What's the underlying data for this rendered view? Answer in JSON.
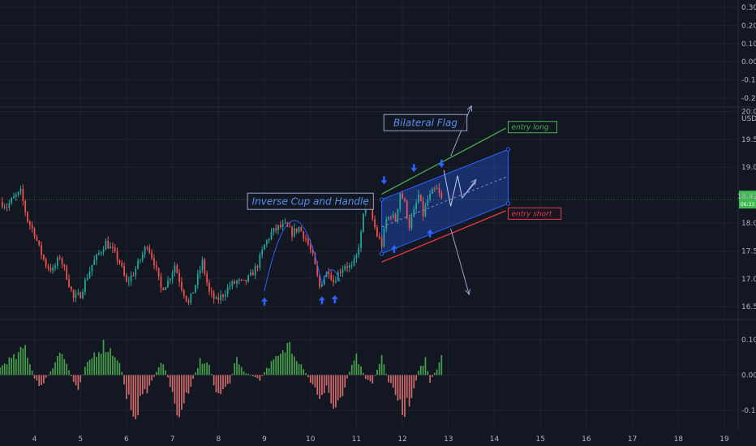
{
  "chart_data": [
    {
      "type": "area",
      "panel": "top-oscillator",
      "y_ticks": [
        "0.30",
        "0.20",
        "0.10",
        "0.00",
        "-0.10",
        "-0.20"
      ],
      "y_tick_values": [
        0.3,
        0.2,
        0.1,
        0.0,
        -0.1,
        -0.2
      ],
      "ylim": [
        -0.24,
        0.34
      ],
      "grid": true
    },
    {
      "type": "line",
      "panel": "price",
      "quote_unit": "USDT",
      "y_ticks": [
        "20.00",
        "19.50",
        "19.00",
        "18.00",
        "17.50",
        "17.00",
        "16.50"
      ],
      "y_tick_values": [
        20.0,
        19.5,
        19.0,
        18.0,
        17.5,
        17.0,
        16.5
      ],
      "ylim": [
        16.3,
        20.05
      ],
      "x_ticks": [
        "4",
        "5",
        "6",
        "7",
        "8",
        "9",
        "10",
        "11",
        "12",
        "13",
        "14",
        "15",
        "16",
        "17",
        "18",
        "19"
      ],
      "x_tick_values": [
        4,
        5,
        6,
        7,
        8,
        9,
        10,
        11,
        12,
        13,
        14,
        15,
        16,
        17,
        18,
        19
      ],
      "xlim": [
        3.25,
        19.3
      ],
      "grid": true,
      "last_price": "18.42",
      "countdown": "06:33",
      "price_series": {
        "x": [
          3.25,
          3.4,
          3.55,
          3.7,
          3.85,
          4.0,
          4.1,
          4.25,
          4.4,
          4.55,
          4.7,
          4.85,
          5.0,
          5.1,
          5.25,
          5.4,
          5.55,
          5.7,
          5.85,
          6.0,
          6.15,
          6.3,
          6.45,
          6.6,
          6.75,
          6.9,
          7.05,
          7.2,
          7.35,
          7.5,
          7.65,
          7.8,
          7.95,
          8.1,
          8.25,
          8.4,
          8.55,
          8.7,
          8.85,
          9.0,
          9.15,
          9.3,
          9.45,
          9.6,
          9.75,
          9.9,
          10.05,
          10.2,
          10.3,
          10.4,
          10.5,
          10.6,
          10.75,
          10.9,
          11.0,
          11.1,
          11.2,
          11.3,
          11.45,
          11.55,
          11.65,
          11.75,
          11.85,
          11.95,
          12.05,
          12.15,
          12.25,
          12.35,
          12.45,
          12.55,
          12.65,
          12.75,
          12.85
        ],
        "y": [
          18.38,
          18.3,
          18.45,
          18.55,
          18.05,
          17.82,
          17.55,
          17.25,
          17.15,
          17.4,
          17.05,
          16.65,
          16.72,
          16.95,
          17.25,
          17.45,
          17.65,
          17.5,
          17.3,
          16.92,
          17.1,
          17.35,
          17.62,
          17.3,
          16.82,
          16.95,
          17.25,
          16.85,
          16.55,
          16.9,
          17.3,
          16.75,
          16.6,
          16.72,
          16.88,
          16.95,
          16.92,
          17.05,
          17.25,
          17.6,
          17.82,
          17.92,
          17.95,
          17.82,
          17.92,
          17.72,
          17.4,
          16.85,
          17.05,
          17.15,
          16.95,
          17.1,
          17.25,
          17.2,
          17.4,
          17.8,
          18.45,
          18.2,
          17.78,
          17.62,
          18.05,
          18.15,
          18.05,
          18.55,
          18.35,
          17.95,
          18.2,
          18.5,
          18.15,
          18.42,
          18.55,
          18.6,
          18.42
        ]
      },
      "annotations": [
        {
          "text": "Inverse Cup and Handle",
          "x": 10.0,
          "y": 18.39
        },
        {
          "text": "Bilateral Flag",
          "x": 12.5,
          "y": 19.8
        },
        {
          "text": "entry long",
          "x": 14.3,
          "y": 19.72
        },
        {
          "text": "entry short",
          "x": 14.3,
          "y": 18.17
        }
      ]
    },
    {
      "type": "bar",
      "panel": "histogram",
      "y_ticks": [
        "0.10",
        "0.00",
        "-0.10"
      ],
      "y_tick_values": [
        0.1,
        0.0,
        -0.1
      ],
      "ylim": [
        -0.15,
        0.15
      ],
      "grid": true,
      "anchors": {
        "x": [
          3.25,
          3.4,
          3.6,
          3.8,
          4.0,
          4.1,
          4.2,
          4.4,
          4.55,
          4.7,
          4.85,
          4.95,
          5.1,
          5.3,
          5.5,
          5.65,
          5.8,
          5.9,
          6.0,
          6.2,
          6.3,
          6.5,
          6.7,
          6.8,
          6.95,
          7.1,
          7.3,
          7.45,
          7.6,
          7.8,
          7.95,
          8.1,
          8.25,
          8.4,
          8.55,
          8.7,
          8.9,
          9.0,
          9.2,
          9.4,
          9.55,
          9.7,
          9.85,
          10.0,
          10.2,
          10.35,
          10.5,
          10.7,
          10.85,
          11.0,
          11.2,
          11.35,
          11.55,
          11.7,
          11.85,
          12.0,
          12.2,
          12.35,
          12.5,
          12.6,
          12.75,
          12.85
        ],
        "y": [
          0.02,
          0.04,
          0.05,
          0.08,
          -0.01,
          -0.03,
          -0.02,
          0.02,
          0.08,
          0.03,
          -0.02,
          -0.035,
          0.02,
          0.06,
          0.085,
          0.07,
          0.05,
          0.01,
          -0.06,
          -0.11,
          -0.075,
          -0.03,
          0.02,
          0.04,
          -0.03,
          -0.12,
          -0.06,
          -0.01,
          0.04,
          0.03,
          -0.05,
          -0.05,
          -0.02,
          0.05,
          0.01,
          0.0,
          -0.015,
          0.01,
          0.04,
          0.06,
          0.095,
          0.05,
          0.02,
          -0.02,
          -0.06,
          -0.035,
          -0.1,
          -0.05,
          0.01,
          0.05,
          -0.01,
          -0.02,
          0.05,
          -0.02,
          -0.05,
          -0.11,
          -0.06,
          0.01,
          0.045,
          -0.02,
          0.02,
          0.06
        ]
      }
    }
  ],
  "colors": {
    "background": "#131722",
    "grid": "#1f2331",
    "up": "#26a69a",
    "down": "#ef5350",
    "histogram_up": "#4caf50",
    "histogram_down": "#e57373",
    "pattern_blue": "#2962ff",
    "annotation_text": "#5b8def",
    "entry_long": "#4caf50",
    "entry_short": "#f23645",
    "projection": "#9aa4cc",
    "price_badge": "#3fb950"
  }
}
